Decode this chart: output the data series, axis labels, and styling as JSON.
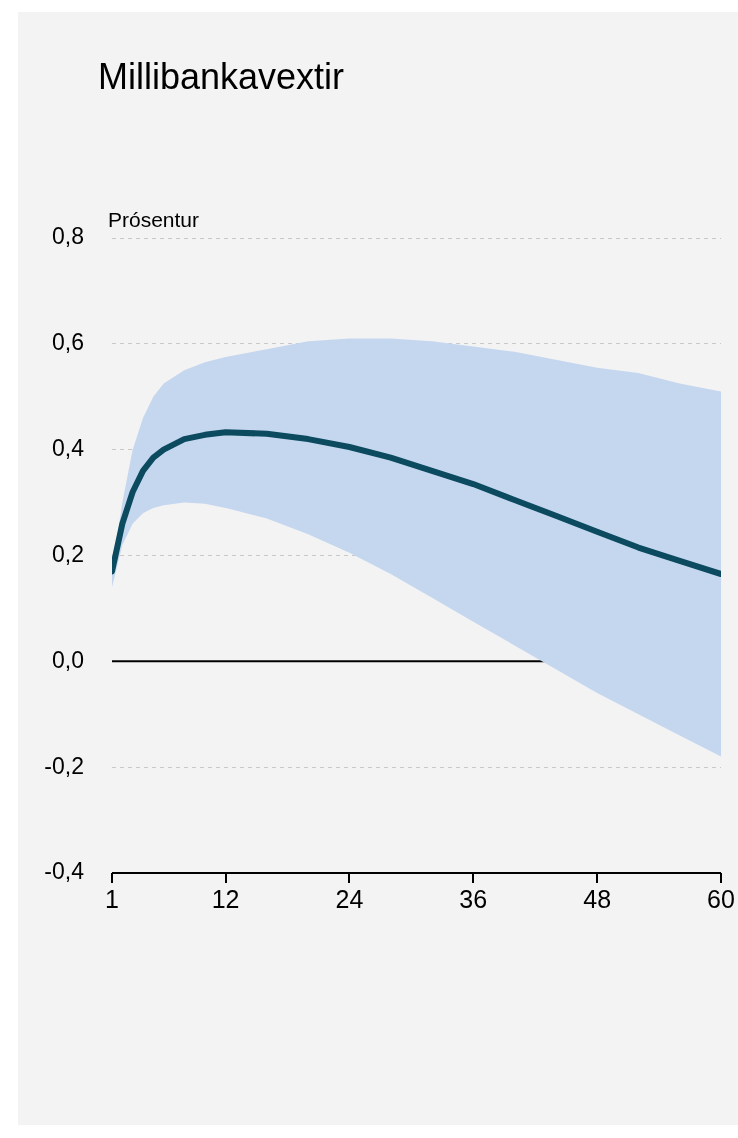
{
  "chart_data": {
    "type": "line",
    "title": "Millibankavextir",
    "ylabel": "Prósentur",
    "xlim": [
      1,
      60
    ],
    "xticks": [
      1,
      12,
      24,
      36,
      48,
      60
    ],
    "ylim": [
      -0.4,
      0.8
    ],
    "yticks": [
      {
        "value": -0.4,
        "label": "-0,4"
      },
      {
        "value": -0.2,
        "label": "-0,2"
      },
      {
        "value": 0,
        "label": "0,0"
      },
      {
        "value": 0.2,
        "label": "0,2"
      },
      {
        "value": 0.4,
        "label": "0,4"
      },
      {
        "value": 0.6,
        "label": "0,6"
      },
      {
        "value": 0.8,
        "label": "0,8"
      }
    ],
    "grid": "y",
    "marker": "none",
    "line_style": "solid",
    "ref_lines": [
      {
        "axis": "y",
        "value": 0,
        "color": "#000000"
      }
    ],
    "series": [
      {
        "color": "#0b4a5f",
        "x": [
          1,
          2,
          3,
          4,
          5,
          6,
          8,
          10,
          12,
          16,
          20,
          24,
          28,
          32,
          36,
          40,
          44,
          48,
          52,
          56,
          60
        ],
        "values": [
          0.17,
          0.26,
          0.32,
          0.36,
          0.385,
          0.4,
          0.42,
          0.428,
          0.433,
          0.43,
          0.42,
          0.405,
          0.385,
          0.36,
          0.335,
          0.305,
          0.275,
          0.245,
          0.215,
          0.19,
          0.165
        ],
        "upper": [
          0.17,
          0.3,
          0.4,
          0.46,
          0.5,
          0.525,
          0.55,
          0.565,
          0.575,
          0.59,
          0.605,
          0.61,
          0.61,
          0.605,
          0.595,
          0.585,
          0.57,
          0.555,
          0.545,
          0.525,
          0.51
        ],
        "lower": [
          0.14,
          0.22,
          0.26,
          0.28,
          0.29,
          0.295,
          0.3,
          0.298,
          0.29,
          0.27,
          0.24,
          0.205,
          0.165,
          0.12,
          0.075,
          0.03,
          -0.015,
          -0.06,
          -0.1,
          -0.14,
          -0.18
        ]
      }
    ]
  }
}
